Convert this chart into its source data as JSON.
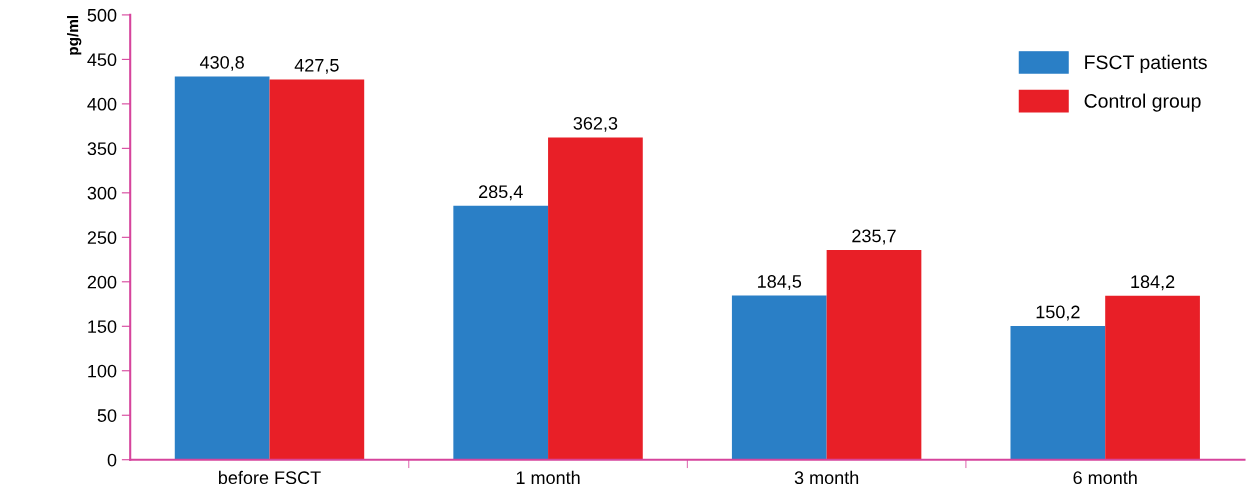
{
  "chart_data": {
    "type": "bar",
    "ylabel": "pg/ml",
    "categories": [
      "before FSCT",
      "1 month",
      "3 month",
      "6 month"
    ],
    "series": [
      {
        "name": "FSCT patients",
        "color": "#2a7fc6",
        "values": [
          430.8,
          285.4,
          184.5,
          150.2
        ],
        "value_labels": [
          "430,8",
          "285,4",
          "184,5",
          "150,2"
        ]
      },
      {
        "name": "Control group",
        "color": "#e81f27",
        "values": [
          427.5,
          362.3,
          235.7,
          184.2
        ],
        "value_labels": [
          "427,5",
          "362,3",
          "235,7",
          "184,2"
        ]
      }
    ],
    "ylim": [
      0,
      500
    ],
    "yticks": [
      0,
      50,
      100,
      150,
      200,
      250,
      300,
      350,
      400,
      450,
      500
    ],
    "grid": false,
    "legend": "top right"
  }
}
